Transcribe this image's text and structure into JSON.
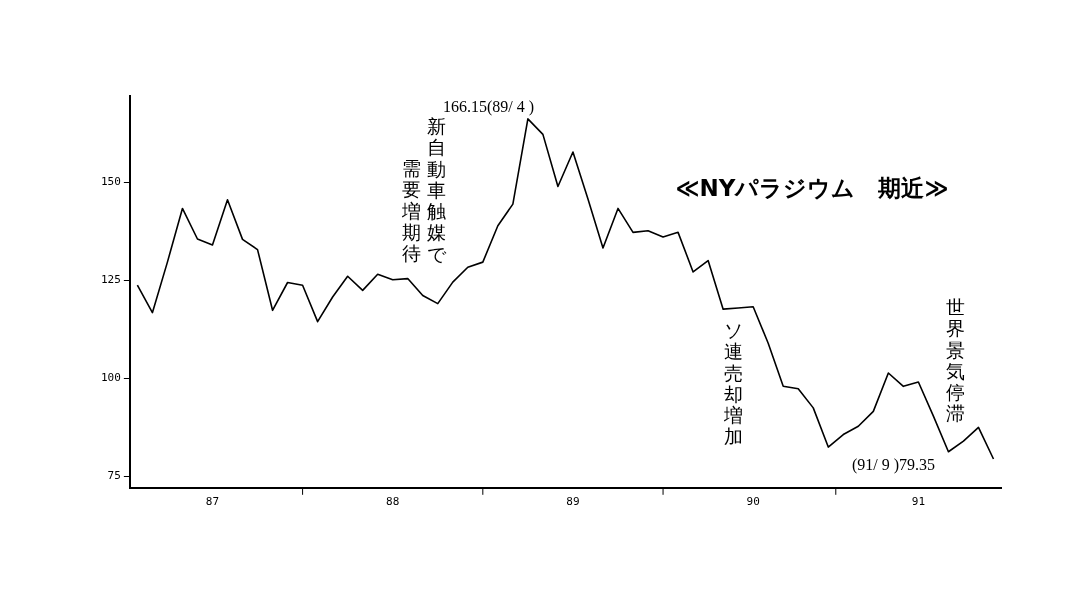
{
  "chart_data": {
    "type": "line",
    "title": "≪NYパラジウム　期近≫",
    "categories": [
      null,
      null,
      null,
      null,
      null,
      "87",
      null,
      null,
      null,
      null,
      null,
      null,
      null,
      null,
      null,
      null,
      null,
      "88",
      null,
      null,
      null,
      null,
      null,
      null,
      null,
      null,
      null,
      null,
      null,
      "89",
      null,
      null,
      null,
      null,
      null,
      null,
      null,
      null,
      null,
      null,
      null,
      "90",
      null,
      null,
      null,
      null,
      null,
      null,
      null,
      null,
      null,
      null,
      "91",
      null,
      null,
      null,
      null,
      null
    ],
    "series": [
      {
        "color": "#000000",
        "values": [
          123.7,
          116.7,
          129.6,
          143.3,
          135.5,
          134,
          145.5,
          135.4,
          132.8,
          117.3,
          124.4,
          123.7,
          114.4,
          120.7,
          126,
          122.4,
          126.5,
          125.1,
          125.4,
          121.1,
          119,
          124.5,
          128.3,
          129.6,
          138.9,
          144.4,
          166.15,
          162.2,
          148.9,
          157.7,
          145.7,
          133.2,
          143.3,
          137.2,
          137.6,
          136,
          137.2,
          127.1,
          130,
          117.6,
          117.9,
          118.2,
          108.9,
          97.9,
          97.3,
          92.4,
          82.4,
          85.6,
          87.7,
          91.5,
          101.3,
          97.9,
          99,
          90.3,
          81.2,
          83.9,
          87.4,
          79.35
        ]
      }
    ],
    "ylim": [
      72,
      172
    ],
    "yticks": [
      75,
      100,
      125,
      150
    ],
    "grid": false,
    "legend": false,
    "marker": "none",
    "line_style": "solid",
    "annotations": [
      "166.15(89/ 4 )",
      "(91/ 9 )79.35",
      "新自動車触媒で",
      "需要増期待",
      "ソ連売却増加",
      "世界景気停滞"
    ]
  }
}
